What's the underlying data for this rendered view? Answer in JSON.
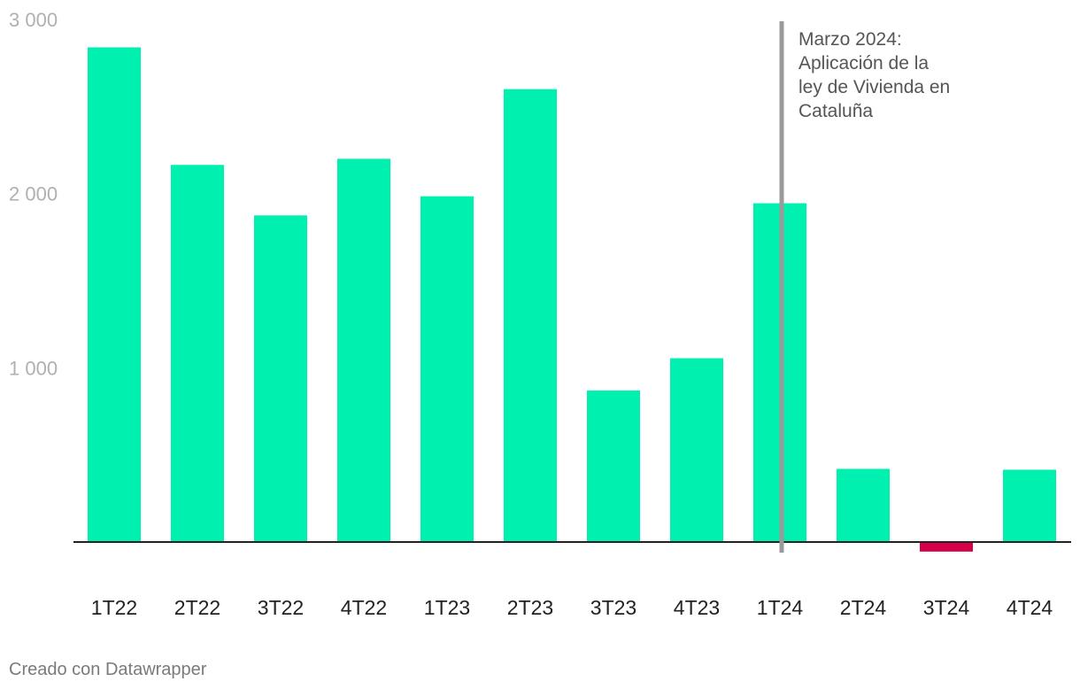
{
  "chart_data": {
    "type": "bar",
    "categories": [
      "1T22",
      "2T22",
      "3T22",
      "4T22",
      "1T23",
      "2T23",
      "3T23",
      "4T23",
      "1T24",
      "2T24",
      "3T24",
      "4T24"
    ],
    "values": [
      2840,
      2165,
      1875,
      2200,
      1985,
      2600,
      870,
      1055,
      1945,
      420,
      -55,
      415
    ],
    "ylim": [
      0,
      3000
    ],
    "yticks": [
      1000,
      2000,
      3000
    ],
    "ytick_labels": [
      "1 000",
      "2 000",
      "3 000"
    ],
    "grid": false,
    "colors": {
      "positive": "#00f0b0",
      "negative": "#d6004a",
      "marker": "#9a9a9a",
      "baseline": "#222222"
    },
    "annotation": {
      "category": "1T24",
      "lines": [
        "Marzo 2024:",
        "Aplicación de la",
        "ley de Vivienda en",
        "Cataluña"
      ]
    }
  },
  "footer": {
    "credit": "Creado con Datawrapper"
  }
}
